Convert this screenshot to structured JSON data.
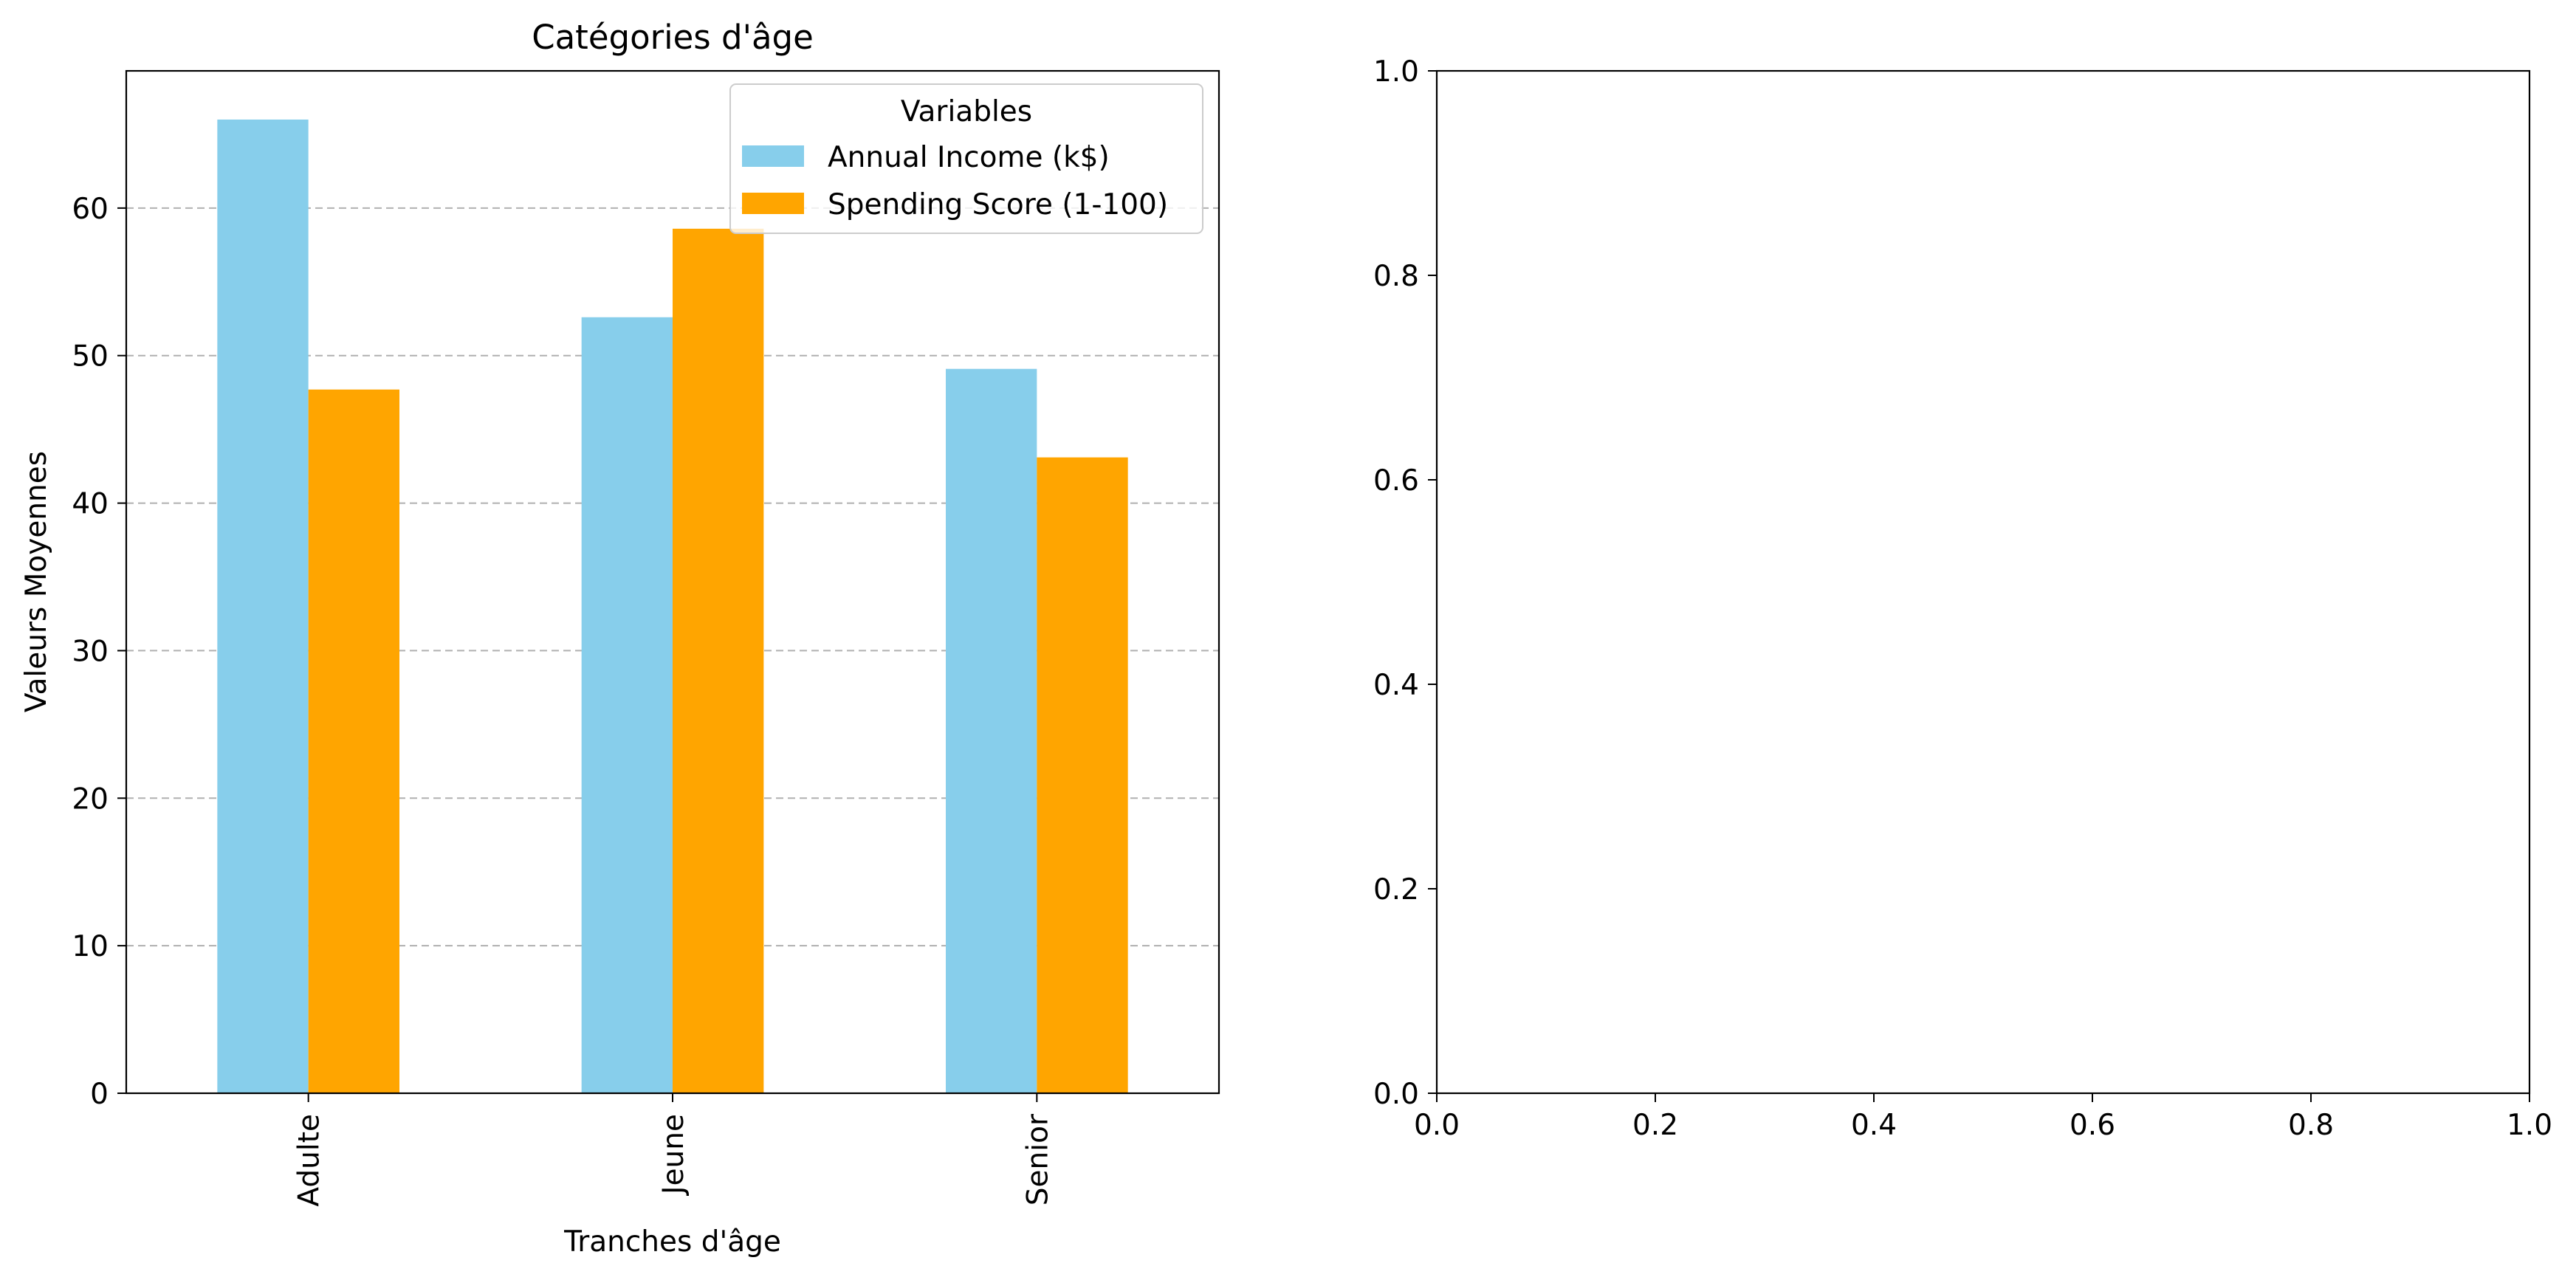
{
  "chart_data": [
    {
      "type": "bar",
      "title": "Catégories d'âge",
      "xlabel": "Tranches d'âge",
      "ylabel": "Valeurs Moyennes",
      "categories": [
        "Adulte",
        "Jeune",
        "Senior"
      ],
      "series": [
        {
          "name": "Annual Income (k$)",
          "values": [
            66.0,
            52.6,
            49.1
          ],
          "color": "#87CEEB"
        },
        {
          "name": "Spending Score (1-100)",
          "values": [
            47.7,
            58.6,
            43.1
          ],
          "color": "#FFA500"
        }
      ],
      "ylim": [
        0,
        69.3
      ],
      "yticks": [
        0,
        10,
        20,
        30,
        40,
        50,
        60
      ],
      "y_grid": true,
      "grid_style": "dashed",
      "legend": {
        "title": "Variables",
        "placement": "upper-right"
      },
      "tick_label_rotation": "vertical"
    },
    {
      "type": "empty",
      "xlim": [
        0.0,
        1.0
      ],
      "ylim": [
        0.0,
        1.0
      ],
      "xticks": [
        "0.0",
        "0.2",
        "0.4",
        "0.6",
        "0.8",
        "1.0"
      ],
      "yticks": [
        "0.0",
        "0.2",
        "0.4",
        "0.6",
        "0.8",
        "1.0"
      ]
    }
  ]
}
